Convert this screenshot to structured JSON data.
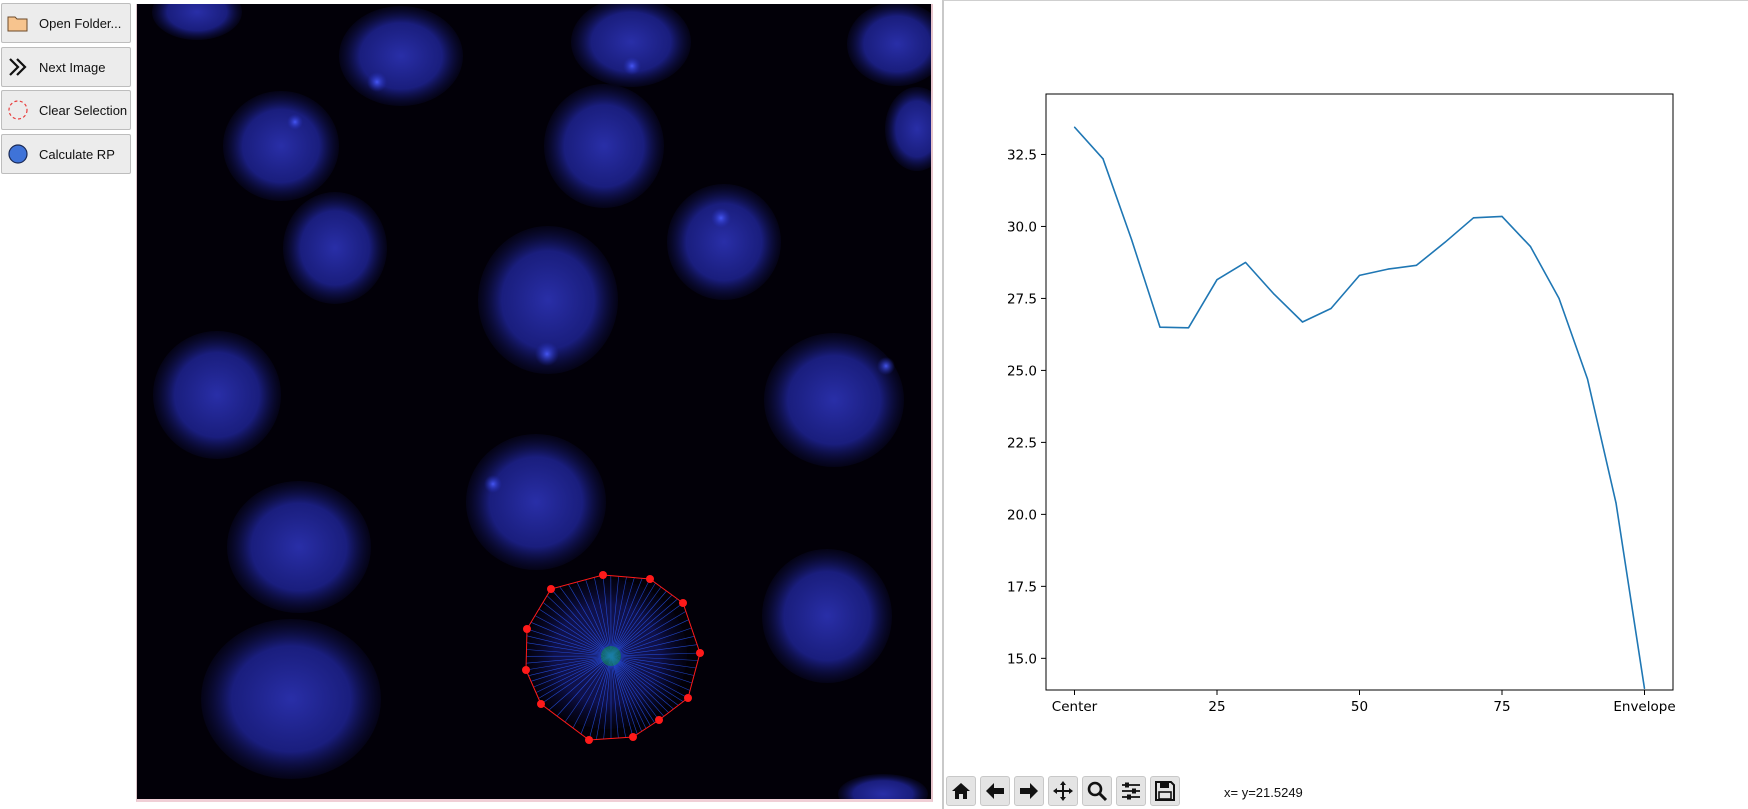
{
  "buttons": {
    "open_folder": "Open Folder...",
    "next_image": "Next Image",
    "clear_selection": "Clear Selection",
    "calculate_rp": "Calculate RP"
  },
  "colors": {
    "nucleus_blue": "#2f35b8",
    "selection_red": "#ff1a1a",
    "ray_blue": "#2a5bff",
    "ray_green": "#00c000",
    "line_blue": "#1f77b4"
  },
  "icons": {
    "open_folder": "folder-icon",
    "next_image": "double-chevron-right-icon",
    "clear_selection": "dashed-circle-icon",
    "calculate_rp": "blue-circle-icon",
    "toolbar": [
      "home-icon",
      "back-arrow-icon",
      "forward-arrow-icon",
      "pan-move-icon",
      "zoom-magnifier-icon",
      "configure-subplots-icon",
      "save-icon"
    ]
  },
  "status": {
    "coordinate_text": "x= y=21.5249"
  },
  "chart_data": {
    "type": "line",
    "title": "",
    "xlabel": "",
    "ylabel": "",
    "x": [
      0,
      5,
      10,
      15,
      20,
      25,
      30,
      35,
      40,
      45,
      50,
      55,
      60,
      65,
      70,
      75,
      80,
      85,
      90,
      95,
      100
    ],
    "series": [
      {
        "values": [
          33.45,
          32.35,
          29.55,
          26.5,
          26.48,
          28.15,
          28.75,
          27.65,
          26.68,
          27.15,
          28.3,
          28.52,
          28.65,
          29.45,
          30.3,
          30.35,
          29.3,
          27.5,
          24.7,
          20.4,
          13.95
        ]
      }
    ],
    "xlim": [
      -5,
      105
    ],
    "ylim": [
      13.9,
      34.6
    ],
    "xticks": [
      0,
      25,
      50,
      75,
      100
    ],
    "xtick_labels": [
      "Center",
      "25",
      "50",
      "75",
      "Envelope"
    ],
    "yticks": [
      15.0,
      17.5,
      20.0,
      22.5,
      25.0,
      27.5,
      30.0,
      32.5
    ],
    "ytick_labels": [
      "15.0",
      "17.5",
      "20.0",
      "22.5",
      "25.0",
      "27.5",
      "30.0",
      "32.5"
    ],
    "grid": false,
    "legend": "none"
  }
}
